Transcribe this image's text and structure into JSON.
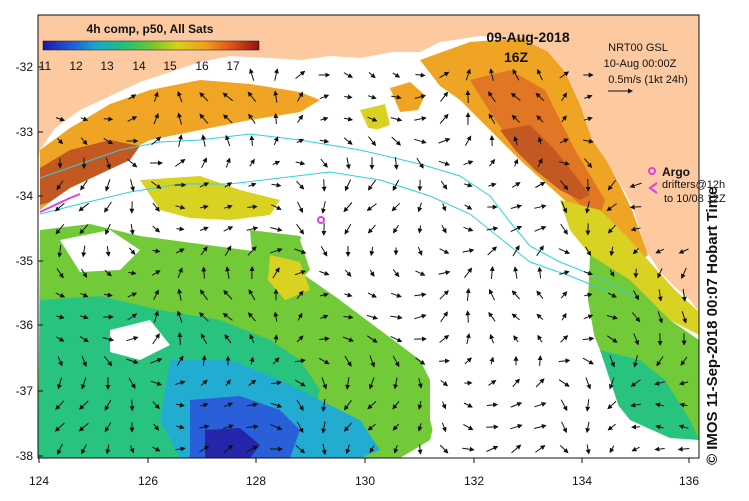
{
  "colorbar": {
    "title": "4h comp, p50, All Sats",
    "ticks": [
      "11",
      "12",
      "13",
      "14",
      "15",
      "16",
      "17"
    ],
    "gradient": [
      "#1a1aa8",
      "#1e58d8",
      "#18a8d0",
      "#1ec07a",
      "#6cc82e",
      "#d8d018",
      "#f0a018",
      "#e0501a",
      "#8c1414"
    ]
  },
  "header": {
    "date": "09-Aug-2018",
    "time": "16Z"
  },
  "current_info": {
    "line1": "NRT00 GSL",
    "line2": "10-Aug 00:00Z",
    "line3": "0.5m/s (1kt 24h)"
  },
  "legend": {
    "argo_label": "Argo",
    "drifters_line1": "drifters@12h",
    "drifters_line2": "to 10/08 12Z"
  },
  "axes": {
    "lat_ticks": [
      "-32",
      "-33",
      "-34",
      "-35",
      "-36",
      "-37",
      "-38"
    ],
    "lon_ticks": [
      "124",
      "126",
      "128",
      "130",
      "132",
      "134",
      "136"
    ]
  },
  "credit": "© IMOS 11-Sep-2018 00:07 Hobart Time",
  "colors": {
    "land": "#fdc9a0",
    "ocean_clouded": "#ffffff",
    "argo": "#e040e0",
    "isobath": "#30d0e0"
  }
}
